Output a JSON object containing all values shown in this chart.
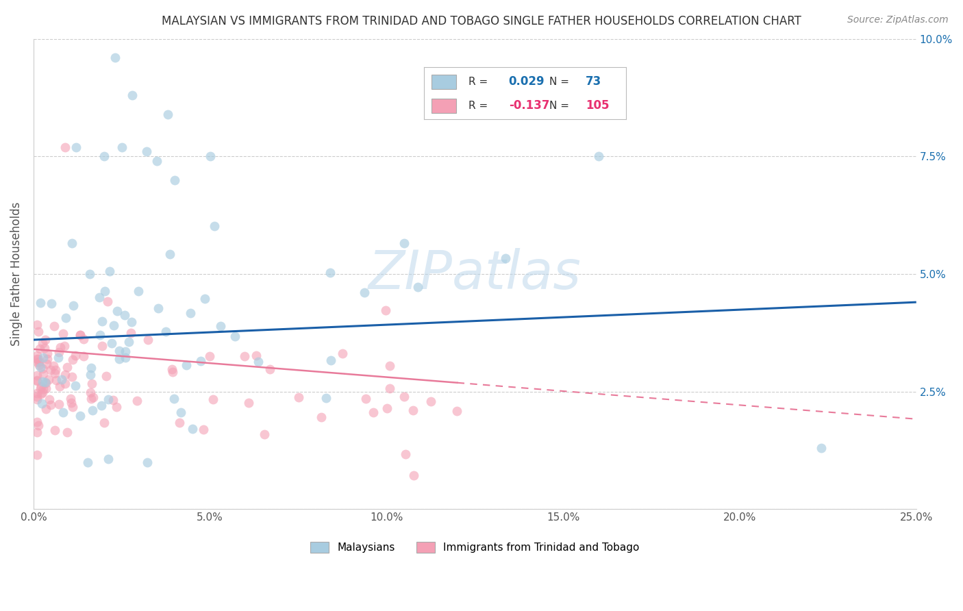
{
  "title": "MALAYSIAN VS IMMIGRANTS FROM TRINIDAD AND TOBAGO SINGLE FATHER HOUSEHOLDS CORRELATION CHART",
  "source": "Source: ZipAtlas.com",
  "ylabel": "Single Father Households",
  "xlim": [
    0.0,
    0.25
  ],
  "ylim": [
    0.0,
    0.1
  ],
  "xticks": [
    0.0,
    0.05,
    0.1,
    0.15,
    0.2,
    0.25
  ],
  "yticks": [
    0.0,
    0.025,
    0.05,
    0.075,
    0.1
  ],
  "xtick_labels": [
    "0.0%",
    "5.0%",
    "10.0%",
    "15.0%",
    "20.0%",
    "25.0%"
  ],
  "ytick_labels_right": [
    "",
    "2.5%",
    "5.0%",
    "7.5%",
    "10.0%"
  ],
  "blue_R": 0.029,
  "blue_N": 73,
  "pink_R": -0.137,
  "pink_N": 105,
  "blue_color": "#a8cce0",
  "pink_color": "#f4a0b5",
  "blue_line_color": "#1a5fa8",
  "pink_line_color": "#e87a9a",
  "blue_label": "Malaysians",
  "pink_label": "Immigrants from Trinidad and Tobago",
  "watermark": "ZIPatlas",
  "background_color": "#ffffff",
  "legend_text_color": "#333333",
  "legend_blue_val_color": "#1a6faf",
  "legend_pink_val_color": "#e83070",
  "grid_color": "#cccccc",
  "title_color": "#333333",
  "source_color": "#888888",
  "ylabel_color": "#555555",
  "tick_color": "#555555",
  "right_tick_color": "#1a6faf"
}
